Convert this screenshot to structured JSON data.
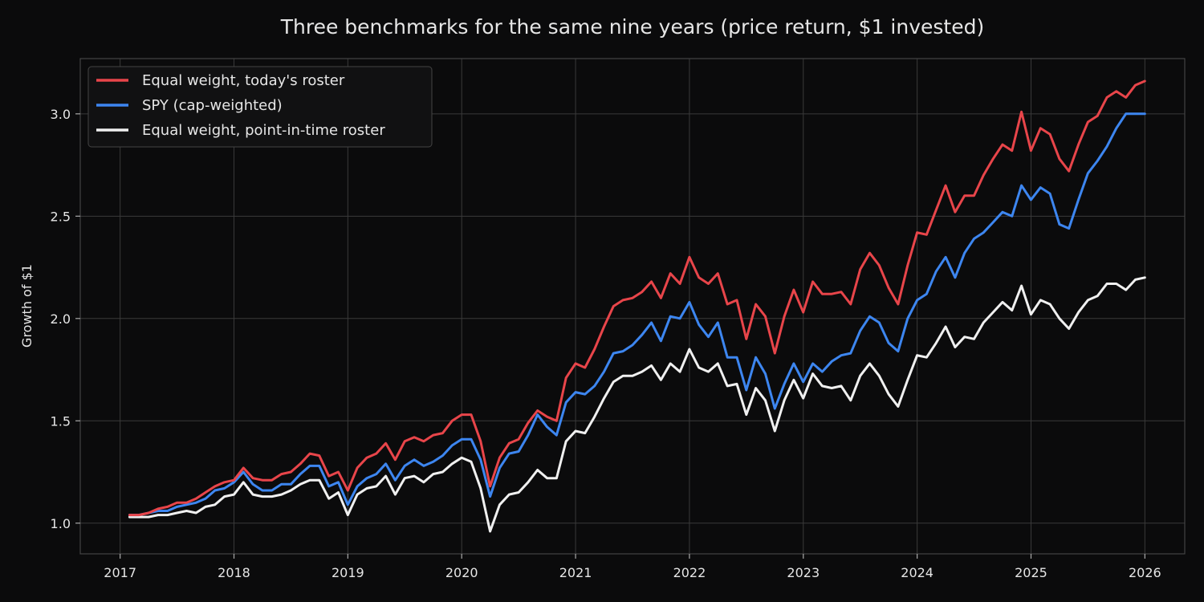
{
  "chart_data": {
    "type": "line",
    "title": "Three benchmarks for the same nine years (price return, $1 invested)",
    "xlabel": "",
    "ylabel": "Growth of $1",
    "xlim": [
      2016.65,
      2026.35
    ],
    "ylim": [
      0.85,
      3.27
    ],
    "x_ticks": [
      "2017",
      "2018",
      "2019",
      "2020",
      "2021",
      "2022",
      "2023",
      "2024",
      "2025",
      "2026"
    ],
    "y_ticks": [
      "1.0",
      "1.5",
      "2.0",
      "2.5",
      "3.0"
    ],
    "grid": true,
    "legend_position": "top-left",
    "background": "#0b0b0c",
    "x_start": 2017.083,
    "x_step_months": 1,
    "series": [
      {
        "name": "Equal weight, today's roster",
        "color": "#e8454a",
        "values": [
          1.04,
          1.04,
          1.05,
          1.07,
          1.08,
          1.1,
          1.1,
          1.12,
          1.15,
          1.18,
          1.2,
          1.21,
          1.27,
          1.22,
          1.21,
          1.21,
          1.24,
          1.25,
          1.29,
          1.34,
          1.33,
          1.23,
          1.25,
          1.16,
          1.27,
          1.32,
          1.34,
          1.39,
          1.31,
          1.4,
          1.42,
          1.4,
          1.43,
          1.44,
          1.5,
          1.53,
          1.53,
          1.4,
          1.18,
          1.32,
          1.39,
          1.41,
          1.49,
          1.55,
          1.52,
          1.5,
          1.71,
          1.78,
          1.76,
          1.85,
          1.96,
          2.06,
          2.09,
          2.1,
          2.13,
          2.18,
          2.1,
          2.22,
          2.17,
          2.3,
          2.2,
          2.17,
          2.22,
          2.07,
          2.09,
          1.9,
          2.07,
          2.01,
          1.83,
          2.01,
          2.14,
          2.03,
          2.18,
          2.12,
          2.12,
          2.13,
          2.07,
          2.24,
          2.32,
          2.26,
          2.15,
          2.07,
          2.26,
          2.42,
          2.41,
          2.53,
          2.65,
          2.52,
          2.6,
          2.6,
          2.7,
          2.78,
          2.85,
          2.82,
          3.01,
          2.82,
          2.93,
          2.9,
          2.78,
          2.72,
          2.85,
          2.96,
          2.99,
          3.08,
          3.11,
          3.08,
          3.14,
          3.16
        ]
      },
      {
        "name": "SPY (cap-weighted)",
        "color": "#3d86f0",
        "values": [
          1.04,
          1.04,
          1.05,
          1.06,
          1.06,
          1.08,
          1.09,
          1.1,
          1.12,
          1.16,
          1.17,
          1.2,
          1.25,
          1.19,
          1.16,
          1.16,
          1.19,
          1.19,
          1.24,
          1.28,
          1.28,
          1.18,
          1.2,
          1.09,
          1.18,
          1.22,
          1.24,
          1.29,
          1.21,
          1.28,
          1.31,
          1.28,
          1.3,
          1.33,
          1.38,
          1.41,
          1.41,
          1.31,
          1.13,
          1.27,
          1.34,
          1.35,
          1.43,
          1.53,
          1.47,
          1.43,
          1.59,
          1.64,
          1.63,
          1.67,
          1.74,
          1.83,
          1.84,
          1.87,
          1.92,
          1.98,
          1.89,
          2.01,
          2.0,
          2.08,
          1.97,
          1.91,
          1.98,
          1.81,
          1.81,
          1.65,
          1.81,
          1.73,
          1.56,
          1.68,
          1.78,
          1.69,
          1.78,
          1.74,
          1.79,
          1.82,
          1.83,
          1.94,
          2.01,
          1.98,
          1.88,
          1.84,
          2.0,
          2.09,
          2.12,
          2.23,
          2.3,
          2.2,
          2.32,
          2.39,
          2.42,
          2.47,
          2.52,
          2.5,
          2.65,
          2.58,
          2.64,
          2.61,
          2.46,
          2.44,
          2.58,
          2.71,
          2.77,
          2.84,
          2.93,
          3.0,
          3.0,
          3.0
        ]
      },
      {
        "name": "Equal weight, point-in-time roster",
        "color": "#f0f0f0",
        "values": [
          1.03,
          1.03,
          1.03,
          1.04,
          1.04,
          1.05,
          1.06,
          1.05,
          1.08,
          1.09,
          1.13,
          1.14,
          1.2,
          1.14,
          1.13,
          1.13,
          1.14,
          1.16,
          1.19,
          1.21,
          1.21,
          1.12,
          1.15,
          1.04,
          1.14,
          1.17,
          1.18,
          1.23,
          1.14,
          1.22,
          1.23,
          1.2,
          1.24,
          1.25,
          1.29,
          1.32,
          1.3,
          1.17,
          0.96,
          1.09,
          1.14,
          1.15,
          1.2,
          1.26,
          1.22,
          1.22,
          1.4,
          1.45,
          1.44,
          1.52,
          1.61,
          1.69,
          1.72,
          1.72,
          1.74,
          1.77,
          1.7,
          1.78,
          1.74,
          1.85,
          1.76,
          1.74,
          1.78,
          1.67,
          1.68,
          1.53,
          1.66,
          1.6,
          1.45,
          1.6,
          1.7,
          1.61,
          1.73,
          1.67,
          1.66,
          1.67,
          1.6,
          1.72,
          1.78,
          1.72,
          1.63,
          1.57,
          1.7,
          1.82,
          1.81,
          1.88,
          1.96,
          1.86,
          1.91,
          1.9,
          1.98,
          2.03,
          2.08,
          2.04,
          2.16,
          2.02,
          2.09,
          2.07,
          2.0,
          1.95,
          2.03,
          2.09,
          2.11,
          2.17,
          2.17,
          2.14,
          2.19,
          2.2
        ]
      }
    ]
  }
}
